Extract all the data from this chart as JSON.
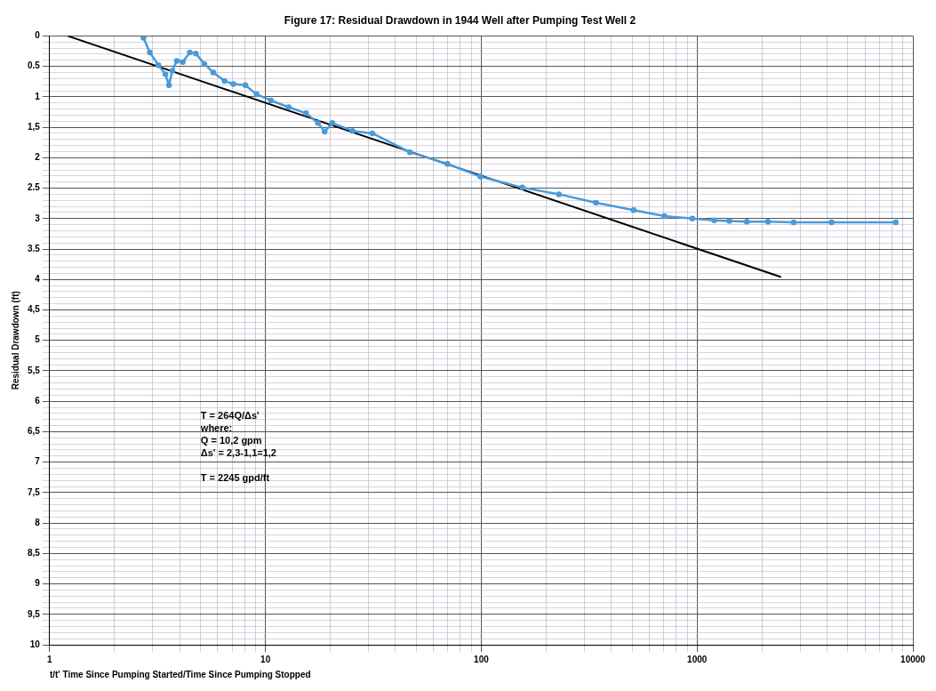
{
  "chart_data": {
    "type": "line",
    "title": "Figure 17: Residual Drawdown in 1944 Well after Pumping Test Well 2",
    "xlabel": "t/t' Time Since Pumping Started/Time Since Pumping Stopped",
    "ylabel": "Residual Drawdown (ft)",
    "log": "x",
    "grid": true,
    "legend": false,
    "xlim": [
      1,
      10000
    ],
    "xticks": [
      1,
      10,
      100,
      1000,
      10000
    ],
    "ylim": [
      10,
      0
    ],
    "yticks": [
      0,
      {
        "value": 0.5,
        "label": "0.5"
      },
      1,
      {
        "value": 1.5,
        "label": "1,5"
      },
      2,
      {
        "value": 2.5,
        "label": "2.5"
      },
      3,
      {
        "value": 3.5,
        "label": "3.5"
      },
      4,
      {
        "value": 4.5,
        "label": "4,5"
      },
      5,
      {
        "value": 5.5,
        "label": "5,5"
      },
      6,
      {
        "value": 6.5,
        "label": "6,5"
      },
      7,
      {
        "value": 7.5,
        "label": "7,5"
      },
      8,
      {
        "value": 8.5,
        "label": "8,5"
      },
      9,
      {
        "value": 9.5,
        "label": "9,5"
      },
      10
    ],
    "series": [
      {
        "color": "#4a9ad8",
        "marker": "circle",
        "x": [
          2.72,
          2.91,
          3.19,
          3.44,
          3.57,
          3.7,
          3.88,
          4.14,
          4.46,
          4.76,
          5.21,
          5.73,
          6.46,
          7.1,
          8.07,
          9.1,
          10.6,
          12.8,
          15.4,
          17.5,
          18.8,
          20.4,
          25.3,
          31.3,
          46.7,
          69.6,
          99,
          155,
          229,
          340,
          508,
          705,
          950,
          1200,
          1410,
          1700,
          2130,
          2800,
          4200,
          8330
        ],
        "values": [
          0.03,
          0.27,
          0.48,
          0.63,
          0.81,
          0.57,
          0.41,
          0.43,
          0.27,
          0.29,
          0.46,
          0.6,
          0.74,
          0.79,
          0.81,
          0.96,
          1.06,
          1.17,
          1.27,
          1.43,
          1.57,
          1.43,
          1.56,
          1.6,
          1.91,
          2.1,
          2.31,
          2.49,
          2.6,
          2.74,
          2.86,
          2.96,
          3.0,
          3.03,
          3.04,
          3.05,
          3.05,
          3.06,
          3.06,
          3.06
        ]
      },
      {
        "color": "#000000",
        "marker": "none",
        "x": [
          1.21,
          2450
        ],
        "values": [
          0,
          3.96
        ]
      }
    ],
    "annotations": [
      "T = 264Q/Δs'\nwhere:\nQ = 10,2 gpm\nΔs' = 2,3-1,1=1,2\n\nT = 2245 gpd/ft"
    ]
  }
}
